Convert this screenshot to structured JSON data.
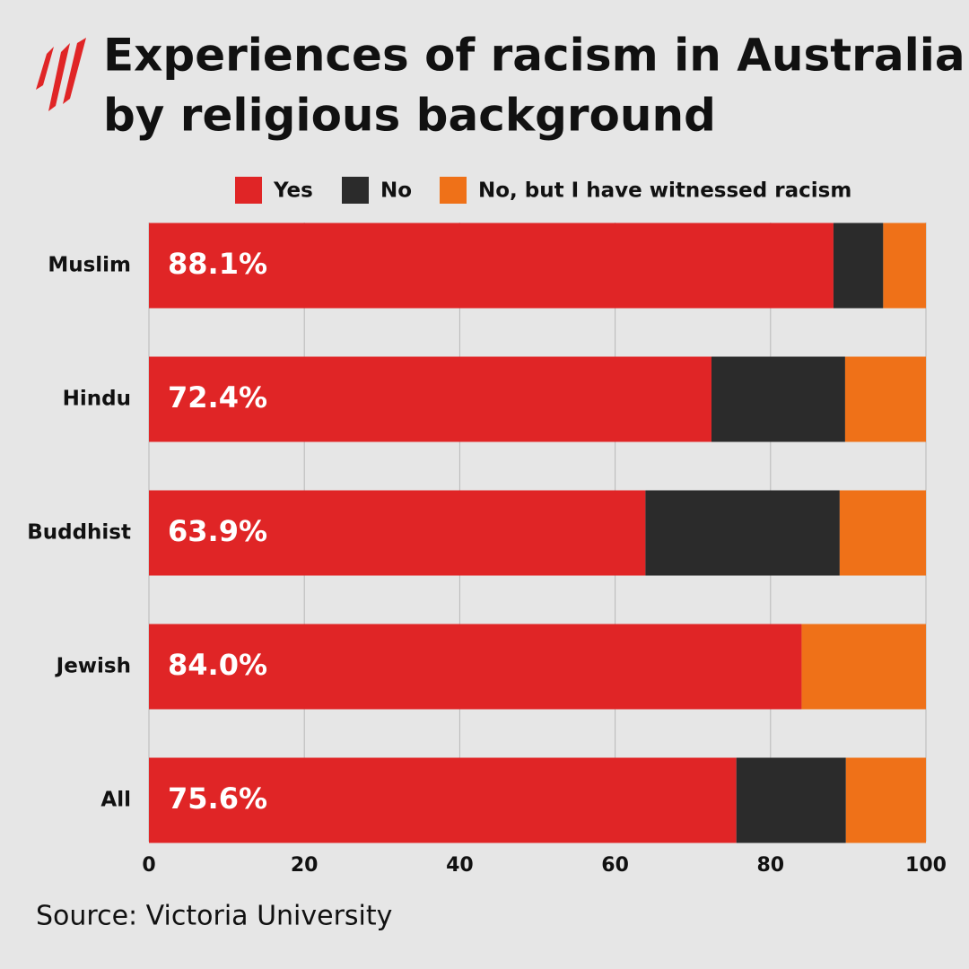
{
  "chart_data": {
    "type": "stacked_bar_horizontal",
    "title": [
      "Experiences of racism in Australia",
      "by religious background"
    ],
    "categories": [
      "Muslim",
      "Hindu",
      "Buddhist",
      "Jewish",
      "All"
    ],
    "series": [
      {
        "name": "Yes",
        "color": "#e02526",
        "values": [
          88.1,
          72.4,
          63.9,
          84.0,
          75.6
        ],
        "value_labels": [
          "88.1%",
          "72.4%",
          "63.9%",
          "84.0%",
          "75.6%"
        ]
      },
      {
        "name": "No",
        "color": "#2b2b2b",
        "values": [
          6.4,
          17.2,
          25.0,
          0,
          14.1
        ]
      },
      {
        "name": "No, but I have witnessed racism",
        "color": "#ef7118",
        "values": [
          5.5,
          10.4,
          11.1,
          16.0,
          10.3
        ]
      }
    ],
    "xlim": [
      0,
      100
    ],
    "xticks": [
      0,
      20,
      40,
      60,
      80,
      100
    ],
    "grid": true,
    "source": "Source: Victoria University"
  }
}
